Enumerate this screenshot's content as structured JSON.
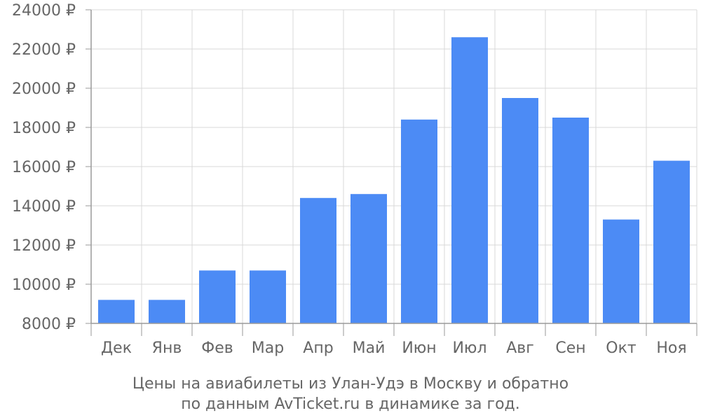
{
  "chart_data": {
    "type": "bar",
    "categories": [
      "Дек",
      "Янв",
      "Фев",
      "Мар",
      "Апр",
      "Май",
      "Июн",
      "Июл",
      "Авг",
      "Сен",
      "Окт",
      "Ноя"
    ],
    "values": [
      9200,
      9200,
      10700,
      10700,
      14400,
      14600,
      18400,
      22600,
      19500,
      18500,
      13300,
      16300
    ],
    "ylim": [
      8000,
      24000
    ],
    "yticks": [
      8000,
      10000,
      12000,
      14000,
      16000,
      18000,
      20000,
      22000,
      24000
    ],
    "ytick_suffix": " ₽",
    "grid": true,
    "bar_color": "#4c8bf5",
    "caption_line1": "Цены на авиабилеты из Улан-Удэ в Москву и обратно",
    "caption_line2": "по данным AvTicket.ru в динамике за год."
  }
}
